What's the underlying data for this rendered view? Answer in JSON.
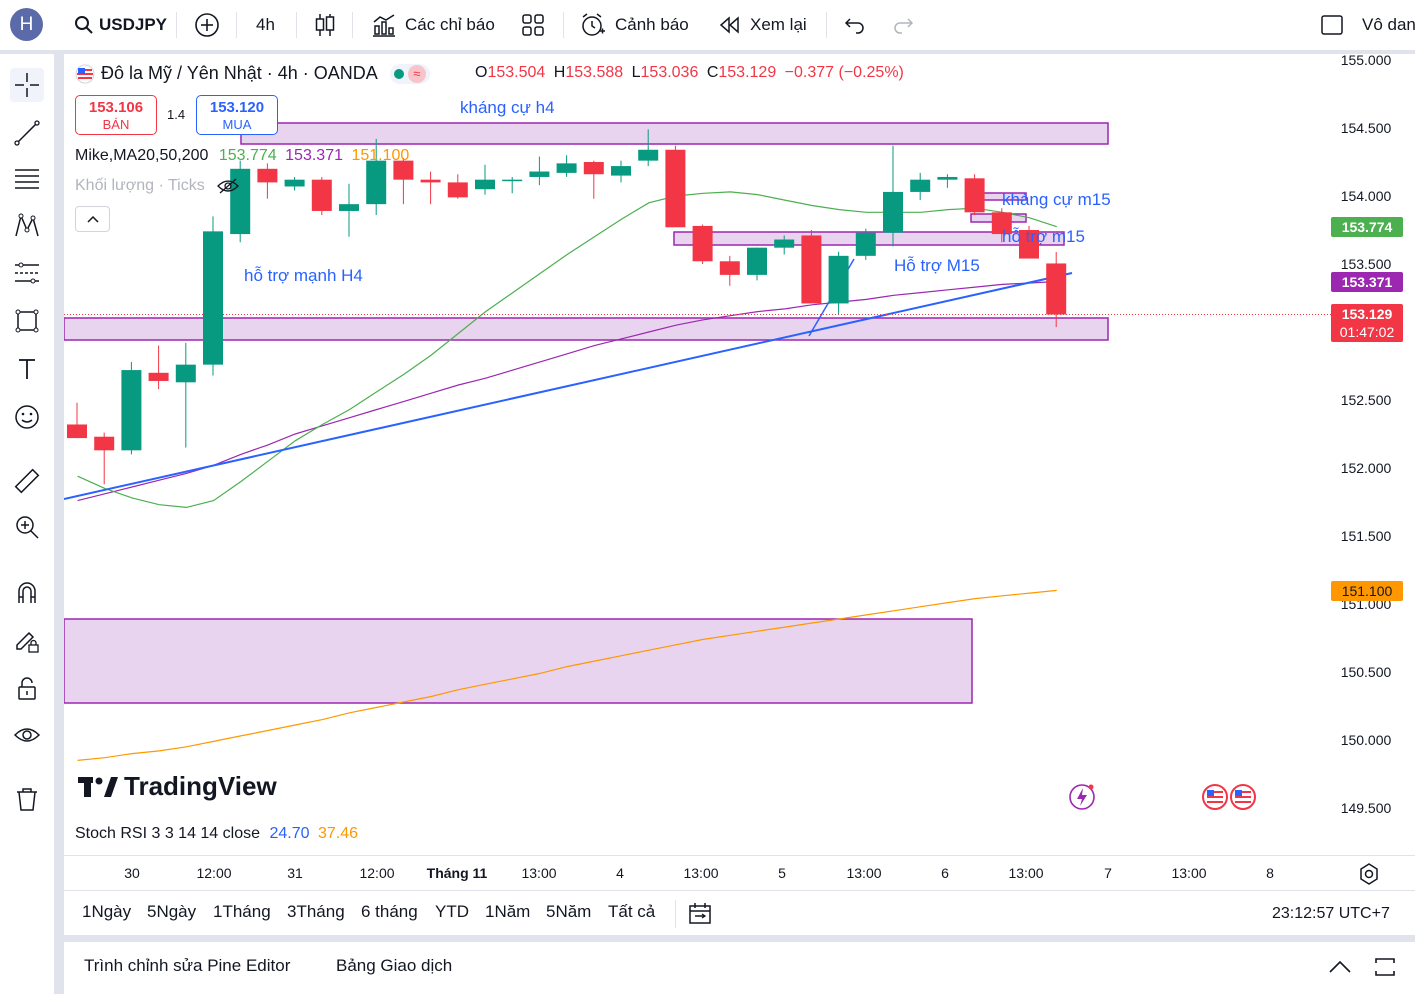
{
  "topbar": {
    "avatar_letter": "H",
    "symbol": "USDJPY",
    "interval": "4h",
    "indicators_label": "Các chỉ báo",
    "alerts_label": "Cảnh báo",
    "replay_label": "Xem lại",
    "right_label": "Vô dan"
  },
  "legend": {
    "title": "Đô la Mỹ / Yên Nhật · 4h · OANDA",
    "o_key": "O",
    "o_val": "153.504",
    "h_key": "H",
    "h_val": "153.588",
    "l_key": "L",
    "l_val": "153.036",
    "c_key": "C",
    "c_val": "153.129",
    "change": "−0.377 (−0.25%)"
  },
  "trade": {
    "sell_price": "153.106",
    "sell_label": "BÁN",
    "spread": "1.4",
    "buy_price": "153.120",
    "buy_label": "MUA"
  },
  "ma_legend": {
    "name": "Mike,MA20,50,200",
    "v1": "153.774",
    "v2": "153.371",
    "v3": "151.100"
  },
  "volume_legend": "Khối lượng · Ticks",
  "annotations": {
    "khang_cu_h4": "kháng cự h4",
    "ho_tro_manh_h4": "hỗ trợ mạnh H4",
    "khang_cu_m15": "kháng cự m15",
    "ho_tro_m15_a": "hỗ trợ m15",
    "ho_tro_m15_b": "Hỗ trợ M15"
  },
  "price_axis": [
    "155.000",
    "154.500",
    "154.000",
    "153.500",
    "152.500",
    "152.000",
    "151.500",
    "151.000",
    "150.500",
    "150.000",
    "149.500"
  ],
  "price_labels": {
    "ma20": "153.774",
    "ma50": "153.371",
    "last": "153.129",
    "countdown": "01:47:02",
    "ma200": "151.100"
  },
  "time_axis": [
    "30",
    "12:00",
    "31",
    "12:00",
    "Tháng 11",
    "13:00",
    "4",
    "13:00",
    "5",
    "13:00",
    "6",
    "13:00",
    "7",
    "13:00",
    "8"
  ],
  "brand": "TradingView",
  "stoch_legend": {
    "name": "Stoch RSI 3 3 14 14 close",
    "k": "24.70",
    "d": "37.46"
  },
  "ranges": [
    "1Ngày",
    "5Ngày",
    "1Tháng",
    "3Tháng",
    "6 tháng",
    "YTD",
    "1Năm",
    "5Năm",
    "Tất cả"
  ],
  "clock": "23:12:57 UTC+7",
  "bottom_tabs": [
    "Trình chỉnh sửa Pine Editor",
    "Bảng Giao dịch"
  ],
  "colors": {
    "up": "#089981",
    "down": "#f23645",
    "ma20": "#4caf50",
    "ma50": "#9c27b0",
    "ma200": "#ff9800",
    "trendline": "#2962ff",
    "zone_fill": "#e9d4f0",
    "zone_border": "#9c27b0"
  },
  "chart_data": {
    "type": "candlestick",
    "symbol": "USDJPY",
    "interval": "4h",
    "ylim": [
      149.5,
      155.0
    ],
    "candles": [
      {
        "o": 152.32,
        "h": 152.48,
        "l": 152.22,
        "c": 152.22
      },
      {
        "o": 152.23,
        "h": 152.26,
        "l": 151.88,
        "c": 152.13
      },
      {
        "o": 152.13,
        "h": 152.78,
        "l": 152.1,
        "c": 152.72
      },
      {
        "o": 152.7,
        "h": 152.9,
        "l": 152.58,
        "c": 152.64
      },
      {
        "o": 152.63,
        "h": 152.92,
        "l": 152.15,
        "c": 152.76
      },
      {
        "o": 152.76,
        "h": 153.85,
        "l": 152.68,
        "c": 153.74
      },
      {
        "o": 153.72,
        "h": 154.26,
        "l": 153.66,
        "c": 154.2
      },
      {
        "o": 154.2,
        "h": 154.24,
        "l": 153.98,
        "c": 154.1
      },
      {
        "o": 154.07,
        "h": 154.14,
        "l": 154.04,
        "c": 154.12
      },
      {
        "o": 154.12,
        "h": 154.14,
        "l": 153.86,
        "c": 153.89
      },
      {
        "o": 153.89,
        "h": 154.09,
        "l": 153.7,
        "c": 153.94
      },
      {
        "o": 153.94,
        "h": 154.42,
        "l": 153.86,
        "c": 154.26
      },
      {
        "o": 154.26,
        "h": 154.28,
        "l": 153.94,
        "c": 154.12
      },
      {
        "o": 154.12,
        "h": 154.18,
        "l": 153.94,
        "c": 154.1
      },
      {
        "o": 154.1,
        "h": 154.16,
        "l": 153.98,
        "c": 153.99
      },
      {
        "o": 154.05,
        "h": 154.23,
        "l": 154.01,
        "c": 154.12
      },
      {
        "o": 154.12,
        "h": 154.14,
        "l": 154.02,
        "c": 154.12
      },
      {
        "o": 154.14,
        "h": 154.29,
        "l": 154.08,
        "c": 154.18
      },
      {
        "o": 154.17,
        "h": 154.3,
        "l": 154.14,
        "c": 154.24
      },
      {
        "o": 154.25,
        "h": 154.26,
        "l": 153.98,
        "c": 154.16
      },
      {
        "o": 154.15,
        "h": 154.26,
        "l": 154.1,
        "c": 154.22
      },
      {
        "o": 154.26,
        "h": 154.49,
        "l": 154.22,
        "c": 154.34
      },
      {
        "o": 154.34,
        "h": 154.37,
        "l": 153.78,
        "c": 153.77
      },
      {
        "o": 153.78,
        "h": 153.79,
        "l": 153.5,
        "c": 153.52
      },
      {
        "o": 153.52,
        "h": 153.56,
        "l": 153.34,
        "c": 153.42
      },
      {
        "o": 153.42,
        "h": 153.62,
        "l": 153.38,
        "c": 153.62
      },
      {
        "o": 153.62,
        "h": 153.71,
        "l": 153.57,
        "c": 153.68
      },
      {
        "o": 153.71,
        "h": 153.75,
        "l": 153.21,
        "c": 153.21
      },
      {
        "o": 153.21,
        "h": 153.59,
        "l": 153.13,
        "c": 153.56
      },
      {
        "o": 153.56,
        "h": 153.76,
        "l": 153.53,
        "c": 153.73
      },
      {
        "o": 153.73,
        "h": 154.37,
        "l": 153.63,
        "c": 154.03
      },
      {
        "o": 154.03,
        "h": 154.17,
        "l": 153.97,
        "c": 154.12
      },
      {
        "o": 154.12,
        "h": 154.16,
        "l": 154.06,
        "c": 154.14
      },
      {
        "o": 154.13,
        "h": 154.16,
        "l": 153.86,
        "c": 153.88
      },
      {
        "o": 153.88,
        "h": 153.91,
        "l": 153.66,
        "c": 153.72
      },
      {
        "o": 153.75,
        "h": 153.78,
        "l": 153.54,
        "c": 153.54
      },
      {
        "o": 153.504,
        "h": 153.588,
        "l": 153.036,
        "c": 153.129
      }
    ],
    "ma20": [
      151.94,
      151.85,
      151.78,
      151.73,
      151.71,
      151.76,
      151.9,
      152.05,
      152.2,
      152.32,
      152.43,
      152.56,
      152.69,
      152.83,
      152.99,
      153.15,
      153.29,
      153.43,
      153.57,
      153.7,
      153.83,
      153.95,
      154.0,
      154.02,
      154.03,
      154.01,
      153.97,
      153.93,
      153.9,
      153.88,
      153.88,
      153.88,
      153.9,
      153.91,
      153.88,
      153.84,
      153.774
    ],
    "ma50": [
      151.76,
      151.81,
      151.86,
      151.91,
      151.96,
      152.02,
      152.1,
      152.17,
      152.25,
      152.31,
      152.37,
      152.43,
      152.49,
      152.55,
      152.61,
      152.66,
      152.72,
      152.78,
      152.84,
      152.9,
      152.95,
      153.0,
      153.05,
      153.09,
      153.12,
      153.15,
      153.17,
      153.2,
      153.22,
      153.24,
      153.27,
      153.29,
      153.31,
      153.33,
      153.35,
      153.36,
      153.371
    ],
    "ma200": [
      149.85,
      149.87,
      149.9,
      149.92,
      149.95,
      149.99,
      150.03,
      150.07,
      150.11,
      150.15,
      150.2,
      150.24,
      150.28,
      150.32,
      150.37,
      150.41,
      150.45,
      150.49,
      150.54,
      150.58,
      150.62,
      150.66,
      150.7,
      150.74,
      150.77,
      150.8,
      150.83,
      150.86,
      150.89,
      150.92,
      150.95,
      150.98,
      151.01,
      151.04,
      151.06,
      151.08,
      151.1
    ]
  }
}
